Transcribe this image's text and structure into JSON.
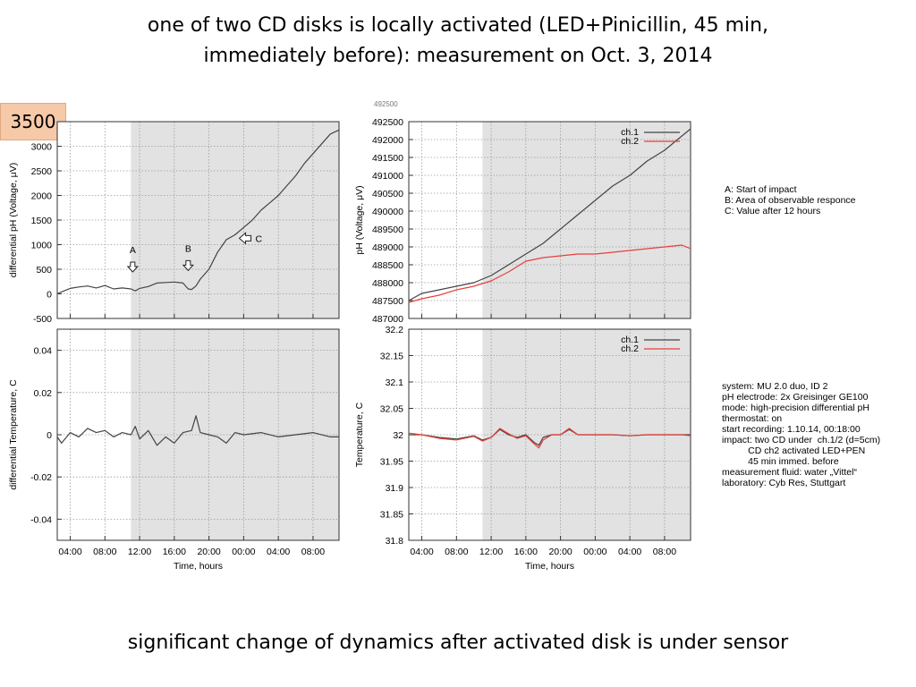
{
  "slide": {
    "title_line1": "one of two CD disks is locally activated (LED+Pinicillin, 45 min,",
    "title_line2": "immediately before): measurement on Oct. 3, 2014",
    "badge": "3500",
    "ghost_label": "492500",
    "caption": "significant change of dynamics after activated disk is under sensor"
  },
  "annotations": {
    "legend": [
      "A: Start of impact",
      "B: Area of observable responce",
      "C: Value after 12 hours"
    ],
    "info": [
      "system: MU 2.0 duo, ID 2",
      "pH electrode: 2x Greisinger GE100",
      "mode: high-precision differential pH",
      "thermostat: on",
      "start recording: 1.10.14, 00:18:00",
      "impact: two CD under  ch.1/2 (d=5cm)",
      "          CD ch2 activated LED+PEN",
      "          45 min immed. before",
      "measurement fluid: water „Vittel“",
      "laboratory: Cyb Res, Stuttgart"
    ]
  },
  "colors": {
    "ch1": "#444444",
    "ch2": "#e8403a",
    "shade": "#e2e2e2",
    "badge": "#f6c9a8"
  },
  "chart_data": [
    {
      "id": "diff-ph",
      "type": "line",
      "ylabel": "differential pH (Voltage, μV)",
      "xlabel": "",
      "xlim": [
        2.5,
        35
      ],
      "ylim": [
        -500,
        3500
      ],
      "yticks": [
        -500,
        0,
        500,
        1000,
        1500,
        2000,
        2500,
        3000
      ],
      "ytick_labels": [
        "-500",
        "0",
        "500",
        "1000",
        "1500",
        "2000",
        "2500",
        "3000"
      ],
      "xticks": [
        4,
        8,
        12,
        16,
        20,
        24,
        28,
        32
      ],
      "xtick_labels": [
        "04:00",
        "08:00",
        "12:00",
        "16:00",
        "20:00",
        "00:00",
        "04:00",
        "08:00"
      ],
      "show_xticklabels": false,
      "shade_from": 11,
      "markers": [
        {
          "label": "A",
          "x": 11.2,
          "y": 100,
          "dir": "down"
        },
        {
          "label": "B",
          "x": 17.6,
          "y": 130,
          "dir": "down"
        },
        {
          "label": "C",
          "x": 23.5,
          "y": 1130,
          "dir": "left"
        }
      ],
      "series": [
        {
          "color": "#444444",
          "points": [
            [
              2.5,
              0
            ],
            [
              3,
              40
            ],
            [
              4,
              110
            ],
            [
              5,
              140
            ],
            [
              6,
              160
            ],
            [
              7,
              120
            ],
            [
              8,
              170
            ],
            [
              9,
              100
            ],
            [
              10,
              120
            ],
            [
              11,
              100
            ],
            [
              11.5,
              60
            ],
            [
              12,
              110
            ],
            [
              13,
              150
            ],
            [
              14,
              220
            ],
            [
              15,
              230
            ],
            [
              16,
              240
            ],
            [
              17,
              220
            ],
            [
              17.6,
              100
            ],
            [
              18,
              90
            ],
            [
              18.5,
              160
            ],
            [
              19,
              300
            ],
            [
              20,
              500
            ],
            [
              21,
              850
            ],
            [
              22,
              1100
            ],
            [
              23,
              1200
            ],
            [
              24,
              1350
            ],
            [
              25,
              1500
            ],
            [
              26,
              1700
            ],
            [
              27,
              1850
            ],
            [
              28,
              2000
            ],
            [
              29,
              2200
            ],
            [
              30,
              2400
            ],
            [
              31,
              2650
            ],
            [
              32,
              2850
            ],
            [
              33,
              3050
            ],
            [
              34,
              3250
            ],
            [
              35,
              3330
            ]
          ]
        }
      ]
    },
    {
      "id": "ph-voltage",
      "type": "line",
      "ylabel": "pH (Voltage, μV)",
      "xlabel": "",
      "xlim": [
        2.5,
        35
      ],
      "ylim": [
        487000,
        492500
      ],
      "yticks": [
        487000,
        487500,
        488000,
        488500,
        489000,
        489500,
        490000,
        490500,
        491000,
        491500,
        492000,
        492500
      ],
      "ytick_labels": [
        "487000",
        "487500",
        "488000",
        "488500",
        "489000",
        "489500",
        "490000",
        "490500",
        "491000",
        "491500",
        "492000",
        "492500"
      ],
      "xticks": [
        4,
        8,
        12,
        16,
        20,
        24,
        28,
        32
      ],
      "xtick_labels": [
        "04:00",
        "08:00",
        "12:00",
        "16:00",
        "20:00",
        "00:00",
        "04:00",
        "08:00"
      ],
      "show_xticklabels": false,
      "shade_from": 11,
      "legend_position": "top-right",
      "series": [
        {
          "name": "ch.1",
          "color": "#444444",
          "points": [
            [
              2.5,
              487500
            ],
            [
              4,
              487700
            ],
            [
              6,
              487800
            ],
            [
              8,
              487900
            ],
            [
              10,
              488000
            ],
            [
              12,
              488200
            ],
            [
              14,
              488500
            ],
            [
              16,
              488800
            ],
            [
              18,
              489100
            ],
            [
              20,
              489500
            ],
            [
              22,
              489900
            ],
            [
              24,
              490300
            ],
            [
              26,
              490700
            ],
            [
              28,
              491000
            ],
            [
              30,
              491400
            ],
            [
              32,
              491700
            ],
            [
              34,
              492100
            ],
            [
              35,
              492300
            ]
          ]
        },
        {
          "name": "ch.2",
          "color": "#e8403a",
          "points": [
            [
              2.5,
              487450
            ],
            [
              4,
              487550
            ],
            [
              6,
              487650
            ],
            [
              8,
              487800
            ],
            [
              10,
              487900
            ],
            [
              12,
              488050
            ],
            [
              14,
              488300
            ],
            [
              16,
              488600
            ],
            [
              18,
              488700
            ],
            [
              20,
              488750
            ],
            [
              22,
              488800
            ],
            [
              24,
              488800
            ],
            [
              26,
              488850
            ],
            [
              28,
              488900
            ],
            [
              30,
              488950
            ],
            [
              32,
              489000
            ],
            [
              34,
              489050
            ],
            [
              35,
              488950
            ]
          ]
        }
      ]
    },
    {
      "id": "diff-temp",
      "type": "line",
      "ylabel": "differential Temperature, C",
      "xlabel": "Time, hours",
      "xlim": [
        2.5,
        35
      ],
      "ylim": [
        -0.05,
        0.05
      ],
      "yticks": [
        -0.04,
        -0.02,
        0,
        0.02,
        0.04
      ],
      "ytick_labels": [
        "-0.04",
        "-0.02",
        "0",
        "0.02",
        "0.04"
      ],
      "xticks": [
        4,
        8,
        12,
        16,
        20,
        24,
        28,
        32
      ],
      "xtick_labels": [
        "04:00",
        "08:00",
        "12:00",
        "16:00",
        "20:00",
        "00:00",
        "04:00",
        "08:00"
      ],
      "show_xticklabels": true,
      "shade_from": 11,
      "series": [
        {
          "color": "#444444",
          "points": [
            [
              2.5,
              -0.001
            ],
            [
              3,
              -0.004
            ],
            [
              4,
              0.001
            ],
            [
              5,
              -0.001
            ],
            [
              6,
              0.003
            ],
            [
              7,
              0.001
            ],
            [
              8,
              0.002
            ],
            [
              9,
              -0.001
            ],
            [
              10,
              0.001
            ],
            [
              11,
              0
            ],
            [
              11.5,
              0.004
            ],
            [
              12,
              -0.002
            ],
            [
              13,
              0.002
            ],
            [
              14,
              -0.005
            ],
            [
              15,
              -0.001
            ],
            [
              16,
              -0.004
            ],
            [
              17,
              0.001
            ],
            [
              18,
              0.002
            ],
            [
              18.5,
              0.009
            ],
            [
              19,
              0.001
            ],
            [
              20,
              0
            ],
            [
              21,
              -0.001
            ],
            [
              22,
              -0.004
            ],
            [
              23,
              0.001
            ],
            [
              24,
              0
            ],
            [
              26,
              0.001
            ],
            [
              28,
              -0.001
            ],
            [
              30,
              0
            ],
            [
              32,
              0.001
            ],
            [
              34,
              -0.001
            ],
            [
              35,
              -0.001
            ]
          ]
        }
      ]
    },
    {
      "id": "temperature",
      "type": "line",
      "ylabel": "Temperature, C",
      "xlabel": "Time, hours",
      "xlim": [
        2.5,
        35
      ],
      "ylim": [
        31.8,
        32.2
      ],
      "yticks": [
        31.8,
        31.85,
        31.9,
        31.95,
        32,
        32.05,
        32.1,
        32.15,
        32.2
      ],
      "ytick_labels": [
        "31.8",
        "31.85",
        "31.9",
        "31.95",
        "32",
        "32.05",
        "32.1",
        "32.15",
        "32.2"
      ],
      "xticks": [
        4,
        8,
        12,
        16,
        20,
        24,
        28,
        32
      ],
      "xtick_labels": [
        "04:00",
        "08:00",
        "12:00",
        "16:00",
        "20:00",
        "00:00",
        "04:00",
        "08:00"
      ],
      "show_xticklabels": true,
      "shade_from": 11,
      "legend_position": "top-right",
      "series": [
        {
          "name": "ch.1",
          "color": "#444444",
          "points": [
            [
              2.5,
              32.0
            ],
            [
              4,
              32.0
            ],
            [
              6,
              31.995
            ],
            [
              8,
              31.992
            ],
            [
              10,
              31.998
            ],
            [
              11,
              31.99
            ],
            [
              12,
              31.995
            ],
            [
              13,
              32.01
            ],
            [
              14,
              32.0
            ],
            [
              15,
              31.995
            ],
            [
              16,
              32.0
            ],
            [
              17,
              31.985
            ],
            [
              17.5,
              31.98
            ],
            [
              18,
              31.995
            ],
            [
              19,
              32.0
            ],
            [
              20,
              32.0
            ],
            [
              21,
              32.01
            ],
            [
              22,
              32.0
            ],
            [
              24,
              32.0
            ],
            [
              26,
              32.0
            ],
            [
              28,
              31.998
            ],
            [
              30,
              32.0
            ],
            [
              32,
              32.0
            ],
            [
              34,
              32.0
            ],
            [
              35,
              32.0
            ]
          ]
        },
        {
          "name": "ch.2",
          "color": "#e8403a",
          "points": [
            [
              2.5,
              32.003
            ],
            [
              4,
              32.0
            ],
            [
              6,
              31.993
            ],
            [
              8,
              31.99
            ],
            [
              10,
              31.997
            ],
            [
              11,
              31.988
            ],
            [
              12,
              31.995
            ],
            [
              13,
              32.012
            ],
            [
              14,
              32.002
            ],
            [
              15,
              31.993
            ],
            [
              16,
              31.998
            ],
            [
              17,
              31.982
            ],
            [
              17.5,
              31.975
            ],
            [
              18,
              31.99
            ],
            [
              19,
              32.0
            ],
            [
              20,
              32.0
            ],
            [
              21,
              32.012
            ],
            [
              22,
              32.0
            ],
            [
              24,
              32.0
            ],
            [
              26,
              32.0
            ],
            [
              28,
              31.998
            ],
            [
              30,
              32.0
            ],
            [
              32,
              32.0
            ],
            [
              34,
              32.0
            ],
            [
              35,
              31.998
            ]
          ]
        }
      ]
    }
  ]
}
